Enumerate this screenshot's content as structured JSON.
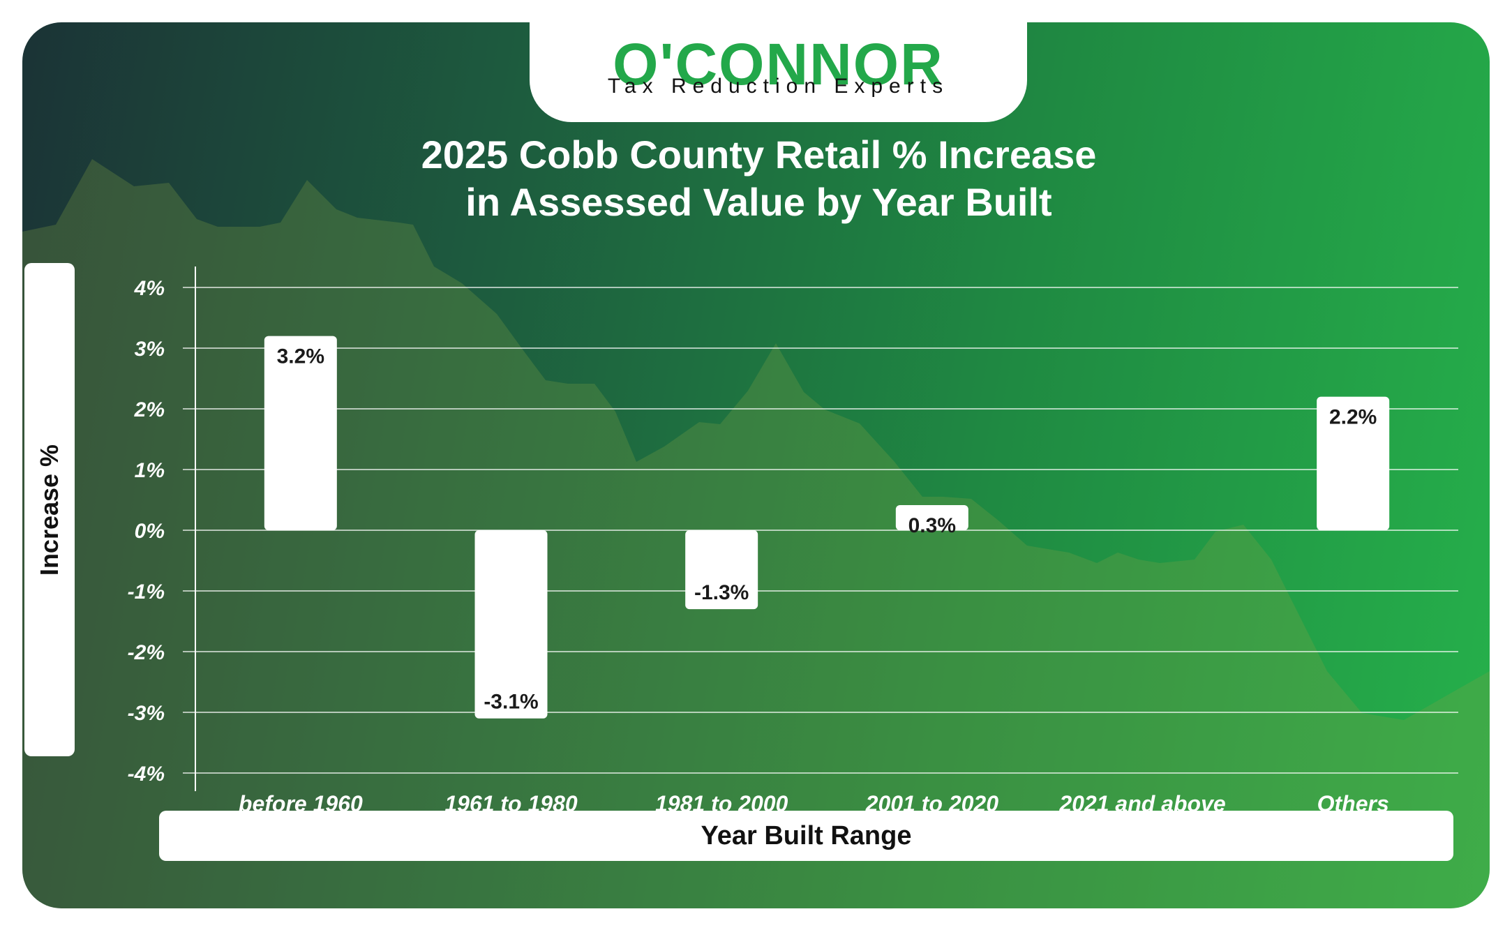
{
  "brand": {
    "logo": "O'CONNOR",
    "tagline": "Tax Reduction Experts"
  },
  "chart_data": {
    "type": "bar",
    "title": "2025 Cobb County Retail % Increase in Assessed Value by Year Built",
    "title_lines": [
      "2025 Cobb County Retail % Increase",
      "in Assessed Value by Year Built"
    ],
    "xlabel": "Year Built Range",
    "ylabel": "Increase %",
    "categories": [
      "before 1960",
      "1961 to 1980",
      "1981 to 2000",
      "2001 to 2020",
      "2021 and above",
      "Others"
    ],
    "values": [
      3.2,
      -3.1,
      -1.3,
      0.3,
      null,
      2.2
    ],
    "data_labels": [
      "3.2%",
      "-3.1%",
      "-1.3%",
      "0.3%",
      "",
      "2.2%"
    ],
    "yticks": [
      4,
      3,
      2,
      1,
      0,
      -1,
      -2,
      -3,
      -4
    ],
    "ytick_labels": [
      "4%",
      "3%",
      "2%",
      "1%",
      "0%",
      "-1%",
      "-2%",
      "-3%",
      "-4%"
    ],
    "ylim": [
      -4,
      4
    ],
    "grid": true,
    "colors": {
      "bar": "#ffffff",
      "label": "#1a1a1a",
      "grid": "#ffffff",
      "brand": "#23a84a"
    }
  }
}
